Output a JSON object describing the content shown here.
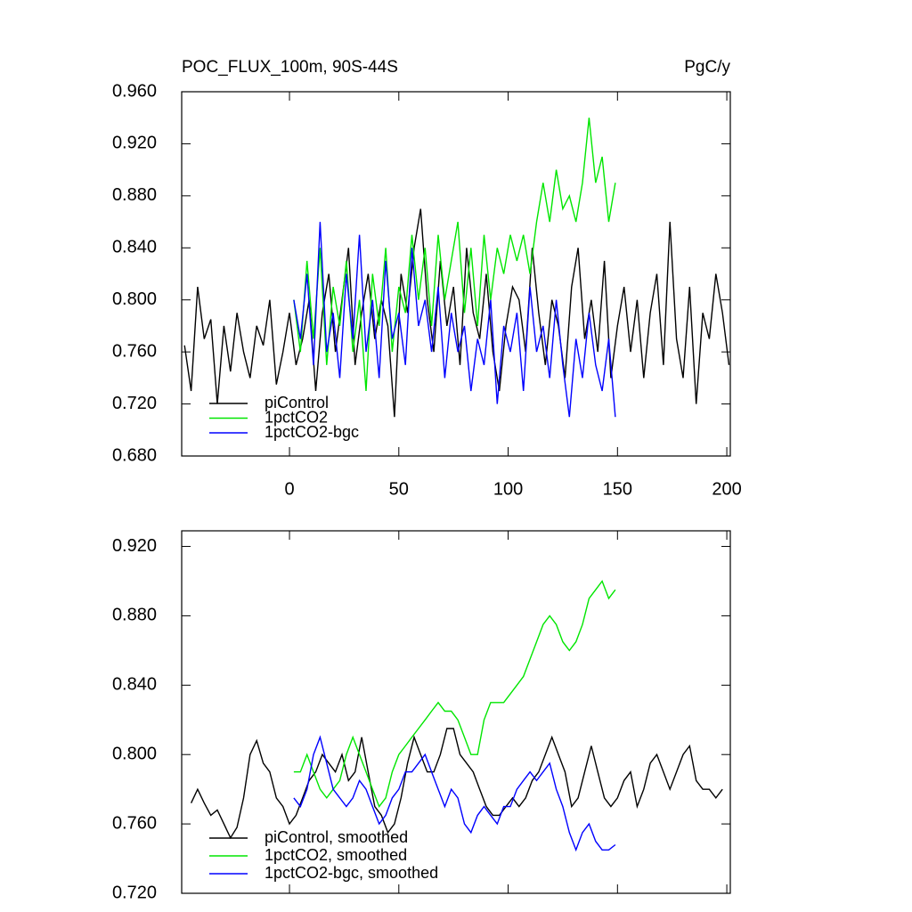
{
  "chart_data": [
    {
      "type": "line",
      "title": "POC_FLUX_100m, 90S-44S",
      "units_label": "PgC/y",
      "xlim": [
        -49.3,
        201.6
      ],
      "xticks": [
        0,
        50,
        100,
        150,
        200
      ],
      "ylim": [
        0.68,
        0.96
      ],
      "yticks": [
        {
          "value": 0.68,
          "label": "0.680"
        },
        {
          "value": 0.72,
          "label": "0.720"
        },
        {
          "value": 0.76,
          "label": "0.760"
        },
        {
          "value": 0.8,
          "label": "0.800"
        },
        {
          "value": 0.84,
          "label": "0.840"
        },
        {
          "value": 0.88,
          "label": "0.880"
        },
        {
          "value": 0.92,
          "label": "0.920"
        },
        {
          "value": 0.96,
          "label": "0.960"
        }
      ],
      "legend_position": "lower-left",
      "series": [
        {
          "name": "piControl",
          "color": "#000000",
          "x": [
            -48,
            -45,
            -42,
            -39,
            -36,
            -33,
            -30,
            -27,
            -24,
            -21,
            -18,
            -15,
            -12,
            -9,
            -6,
            -3,
            0,
            3,
            6,
            9,
            12,
            15,
            18,
            21,
            24,
            27,
            30,
            33,
            36,
            39,
            42,
            45,
            48,
            51,
            54,
            57,
            60,
            63,
            66,
            69,
            72,
            75,
            78,
            81,
            84,
            87,
            90,
            93,
            96,
            99,
            102,
            105,
            108,
            111,
            114,
            117,
            120,
            123,
            126,
            129,
            132,
            135,
            138,
            141,
            144,
            147,
            150,
            153,
            156,
            159,
            162,
            165,
            168,
            171,
            174,
            177,
            180,
            183,
            186,
            189,
            192,
            195,
            198,
            201
          ],
          "values": [
            0.765,
            0.73,
            0.81,
            0.77,
            0.785,
            0.72,
            0.78,
            0.745,
            0.79,
            0.76,
            0.74,
            0.78,
            0.765,
            0.8,
            0.735,
            0.76,
            0.79,
            0.75,
            0.77,
            0.8,
            0.73,
            0.79,
            0.82,
            0.76,
            0.8,
            0.84,
            0.75,
            0.79,
            0.82,
            0.77,
            0.8,
            0.78,
            0.71,
            0.82,
            0.79,
            0.84,
            0.87,
            0.8,
            0.76,
            0.83,
            0.78,
            0.81,
            0.75,
            0.84,
            0.79,
            0.77,
            0.82,
            0.76,
            0.73,
            0.78,
            0.81,
            0.8,
            0.76,
            0.84,
            0.79,
            0.75,
            0.8,
            0.78,
            0.74,
            0.81,
            0.84,
            0.77,
            0.8,
            0.76,
            0.83,
            0.74,
            0.78,
            0.81,
            0.76,
            0.8,
            0.74,
            0.79,
            0.82,
            0.75,
            0.86,
            0.77,
            0.74,
            0.81,
            0.72,
            0.79,
            0.77,
            0.82,
            0.79,
            0.75
          ]
        },
        {
          "name": "1pctCO2",
          "color": "#00e600",
          "x": [
            2,
            5,
            8,
            11,
            14,
            17,
            20,
            23,
            26,
            29,
            32,
            35,
            38,
            41,
            44,
            47,
            50,
            53,
            56,
            59,
            62,
            65,
            68,
            71,
            74,
            77,
            80,
            83,
            86,
            89,
            92,
            95,
            98,
            101,
            104,
            107,
            110,
            113,
            116,
            119,
            122,
            125,
            128,
            131,
            134,
            137,
            140,
            143,
            146,
            149
          ],
          "values": [
            0.8,
            0.76,
            0.83,
            0.77,
            0.84,
            0.75,
            0.81,
            0.78,
            0.83,
            0.76,
            0.8,
            0.73,
            0.82,
            0.78,
            0.84,
            0.76,
            0.81,
            0.79,
            0.85,
            0.8,
            0.84,
            0.78,
            0.85,
            0.8,
            0.83,
            0.86,
            0.79,
            0.84,
            0.78,
            0.85,
            0.8,
            0.84,
            0.82,
            0.85,
            0.83,
            0.85,
            0.82,
            0.86,
            0.89,
            0.86,
            0.9,
            0.87,
            0.88,
            0.86,
            0.89,
            0.94,
            0.89,
            0.91,
            0.86,
            0.89
          ]
        },
        {
          "name": "1pctCO2-bgc",
          "color": "#0000ff",
          "x": [
            2,
            5,
            8,
            11,
            14,
            17,
            20,
            23,
            26,
            29,
            32,
            35,
            38,
            41,
            44,
            47,
            50,
            53,
            56,
            59,
            62,
            65,
            68,
            71,
            74,
            77,
            80,
            83,
            86,
            89,
            92,
            95,
            98,
            101,
            104,
            107,
            110,
            113,
            116,
            119,
            122,
            125,
            128,
            131,
            134,
            137,
            140,
            143,
            146,
            149
          ],
          "values": [
            0.8,
            0.77,
            0.82,
            0.75,
            0.86,
            0.76,
            0.79,
            0.74,
            0.82,
            0.77,
            0.85,
            0.76,
            0.8,
            0.74,
            0.83,
            0.77,
            0.79,
            0.75,
            0.84,
            0.78,
            0.8,
            0.76,
            0.81,
            0.74,
            0.79,
            0.76,
            0.78,
            0.73,
            0.77,
            0.75,
            0.8,
            0.72,
            0.78,
            0.76,
            0.79,
            0.73,
            0.81,
            0.76,
            0.78,
            0.74,
            0.8,
            0.75,
            0.71,
            0.77,
            0.74,
            0.79,
            0.75,
            0.73,
            0.77,
            0.71
          ]
        }
      ]
    },
    {
      "type": "line",
      "xlim": [
        -49.3,
        201.6
      ],
      "ylim": [
        0.72,
        0.929
      ],
      "yticks": [
        {
          "value": 0.72,
          "label": "0.720"
        },
        {
          "value": 0.76,
          "label": "0.760"
        },
        {
          "value": 0.8,
          "label": "0.800"
        },
        {
          "value": 0.84,
          "label": "0.840"
        },
        {
          "value": 0.88,
          "label": "0.880"
        },
        {
          "value": 0.92,
          "label": "0.920"
        }
      ],
      "legend_position": "lower-left",
      "series": [
        {
          "name": "piControl, smoothed",
          "color": "#000000",
          "x": [
            -45,
            -42,
            -39,
            -36,
            -33,
            -30,
            -27,
            -24,
            -21,
            -18,
            -15,
            -12,
            -9,
            -6,
            -3,
            0,
            3,
            6,
            9,
            12,
            15,
            18,
            21,
            24,
            27,
            30,
            33,
            36,
            39,
            42,
            45,
            48,
            51,
            54,
            57,
            60,
            63,
            66,
            69,
            72,
            75,
            78,
            81,
            84,
            87,
            90,
            93,
            96,
            99,
            102,
            105,
            108,
            111,
            114,
            117,
            120,
            123,
            126,
            129,
            132,
            135,
            138,
            141,
            144,
            147,
            150,
            153,
            156,
            159,
            162,
            165,
            168,
            171,
            174,
            177,
            180,
            183,
            186,
            189,
            192,
            195,
            198
          ],
          "values": [
            0.772,
            0.78,
            0.772,
            0.765,
            0.768,
            0.76,
            0.752,
            0.758,
            0.775,
            0.8,
            0.808,
            0.795,
            0.79,
            0.775,
            0.77,
            0.76,
            0.765,
            0.775,
            0.785,
            0.79,
            0.8,
            0.795,
            0.79,
            0.8,
            0.785,
            0.79,
            0.81,
            0.79,
            0.77,
            0.765,
            0.755,
            0.76,
            0.775,
            0.795,
            0.81,
            0.8,
            0.79,
            0.79,
            0.8,
            0.815,
            0.815,
            0.8,
            0.795,
            0.79,
            0.78,
            0.77,
            0.765,
            0.765,
            0.77,
            0.775,
            0.77,
            0.775,
            0.785,
            0.79,
            0.8,
            0.81,
            0.8,
            0.79,
            0.77,
            0.775,
            0.79,
            0.805,
            0.79,
            0.775,
            0.77,
            0.775,
            0.785,
            0.79,
            0.77,
            0.78,
            0.795,
            0.8,
            0.79,
            0.78,
            0.79,
            0.8,
            0.805,
            0.785,
            0.78,
            0.78,
            0.775,
            0.78
          ]
        },
        {
          "name": "1pctCO2, smoothed",
          "color": "#00e600",
          "x": [
            2,
            5,
            8,
            11,
            14,
            17,
            20,
            23,
            26,
            29,
            32,
            35,
            38,
            41,
            44,
            47,
            50,
            53,
            56,
            59,
            62,
            65,
            68,
            71,
            74,
            77,
            80,
            83,
            86,
            89,
            92,
            95,
            98,
            101,
            104,
            107,
            110,
            113,
            116,
            119,
            122,
            125,
            128,
            131,
            134,
            137,
            140,
            143,
            146,
            149
          ],
          "values": [
            0.79,
            0.79,
            0.8,
            0.79,
            0.78,
            0.775,
            0.78,
            0.785,
            0.8,
            0.81,
            0.8,
            0.79,
            0.78,
            0.77,
            0.775,
            0.79,
            0.8,
            0.805,
            0.81,
            0.815,
            0.82,
            0.825,
            0.83,
            0.825,
            0.825,
            0.82,
            0.81,
            0.8,
            0.8,
            0.82,
            0.83,
            0.83,
            0.83,
            0.835,
            0.84,
            0.845,
            0.855,
            0.865,
            0.875,
            0.88,
            0.875,
            0.865,
            0.86,
            0.865,
            0.875,
            0.89,
            0.895,
            0.9,
            0.89,
            0.895
          ]
        },
        {
          "name": "1pctCO2-bgc, smoothed",
          "color": "#0000ff",
          "x": [
            2,
            5,
            8,
            11,
            14,
            17,
            20,
            23,
            26,
            29,
            32,
            35,
            38,
            41,
            44,
            47,
            50,
            53,
            56,
            59,
            62,
            65,
            68,
            71,
            74,
            77,
            80,
            83,
            86,
            89,
            92,
            95,
            98,
            101,
            104,
            107,
            110,
            113,
            116,
            119,
            122,
            125,
            128,
            131,
            134,
            137,
            140,
            143,
            146,
            149
          ],
          "values": [
            0.775,
            0.77,
            0.78,
            0.8,
            0.81,
            0.795,
            0.78,
            0.775,
            0.77,
            0.775,
            0.785,
            0.78,
            0.77,
            0.76,
            0.765,
            0.775,
            0.78,
            0.79,
            0.79,
            0.795,
            0.8,
            0.79,
            0.78,
            0.77,
            0.78,
            0.775,
            0.76,
            0.755,
            0.765,
            0.77,
            0.765,
            0.76,
            0.77,
            0.77,
            0.78,
            0.785,
            0.79,
            0.785,
            0.79,
            0.795,
            0.78,
            0.77,
            0.755,
            0.745,
            0.755,
            0.76,
            0.75,
            0.745,
            0.745,
            0.748
          ]
        }
      ]
    }
  ]
}
